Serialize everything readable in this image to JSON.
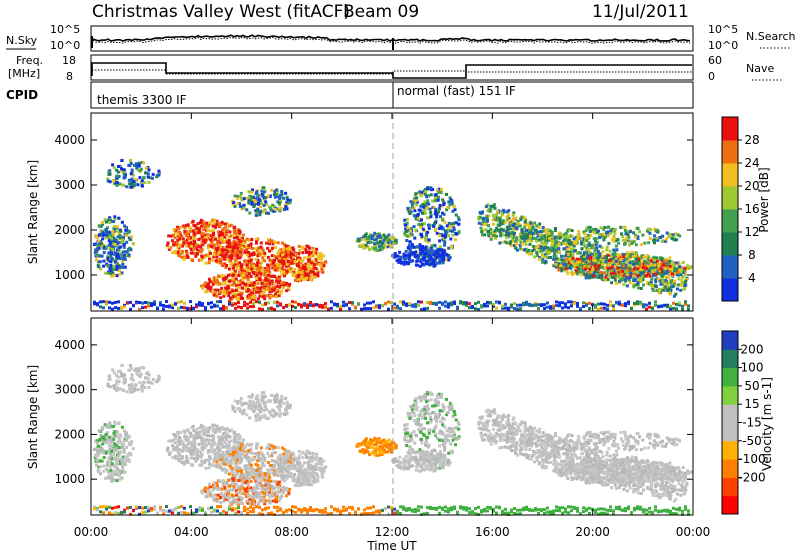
{
  "header": {
    "title": "Christmas Valley West (fitACF)",
    "beam": "Beam 09",
    "date": "11/Jul/2011"
  },
  "strip": {
    "nsky_label": "N.Sky",
    "nsearch_label": "N.Search",
    "count_ticks": [
      "10^5",
      "10^0"
    ],
    "freq_label_1": "Freq.",
    "freq_label_2": "[MHz]",
    "freq_ticks": [
      "18",
      "8"
    ],
    "nave_label": "Nave",
    "nave_ticks": [
      "60",
      "0"
    ],
    "cpid_label": "CPID",
    "cpid_1": "themis 3300 IF",
    "cpid_2": "normal (fast) 151 IF"
  },
  "colors": {
    "power_scale": [
      "#1030e0",
      "#2060c0",
      "#208050",
      "#40a050",
      "#a0c830",
      "#f0c020",
      "#f07010",
      "#e81010"
    ],
    "velocity_scale": [
      "#ff0000",
      "#ff4000",
      "#ff8000",
      "#ffb000",
      "#c0c0c0",
      "#c0c0c0",
      "#80d040",
      "#40b040",
      "#208060",
      "#2040c0"
    ]
  },
  "chart_data": [
    {
      "type": "heatmap",
      "name": "power",
      "ylabel": "Slant Range [km]",
      "yticks": [
        "1000",
        "2000",
        "3000",
        "4000"
      ],
      "ylim": [
        200,
        4600
      ],
      "colorbar_label": "Power [dB]",
      "colorbar_ticks": [
        "4",
        "8",
        "12",
        "16",
        "20",
        "24",
        "28"
      ],
      "colorbar_range": [
        0,
        32
      ]
    },
    {
      "type": "heatmap",
      "name": "velocity",
      "ylabel": "Slant Range [km]",
      "yticks": [
        "1000",
        "2000",
        "3000",
        "4000"
      ],
      "ylim": [
        200,
        4600
      ],
      "colorbar_label": "Velocity [m s-1]",
      "colorbar_ticks": [
        "200",
        "100",
        "50",
        "15",
        "-15",
        "-50",
        "-100",
        "-200"
      ],
      "xticks": [
        "00:00",
        "04:00",
        "08:00",
        "12:00",
        "16:00",
        "20:00",
        "00:00"
      ],
      "xlabel": "Time UT"
    }
  ]
}
